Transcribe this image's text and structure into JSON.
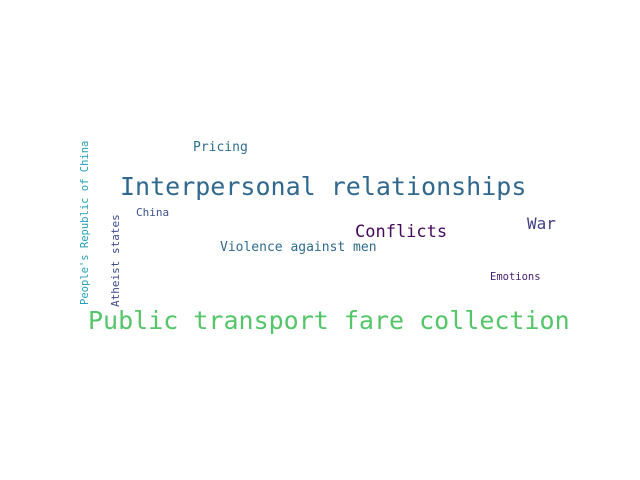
{
  "words": {
    "public_transport": "Public transport fare collection",
    "interpersonal": "Interpersonal relationships",
    "conflicts": "Conflicts",
    "war": "War",
    "pricing": "Pricing",
    "violence": "Violence against men",
    "china": "China",
    "emotions": "Emotions",
    "prc": "People's Republic of China",
    "atheist": "Atheist states"
  },
  "colors": {
    "background": "#ffffff",
    "public_transport": "#54c568",
    "interpersonal": "#31688e",
    "conflicts": "#46085c",
    "war": "#433e85",
    "pricing": "#2e6e8e",
    "violence": "#2f6b8e",
    "china": "#3b528b",
    "emotions": "#482173",
    "prc": "#26a0b8",
    "atheist": "#3e4a89"
  }
}
